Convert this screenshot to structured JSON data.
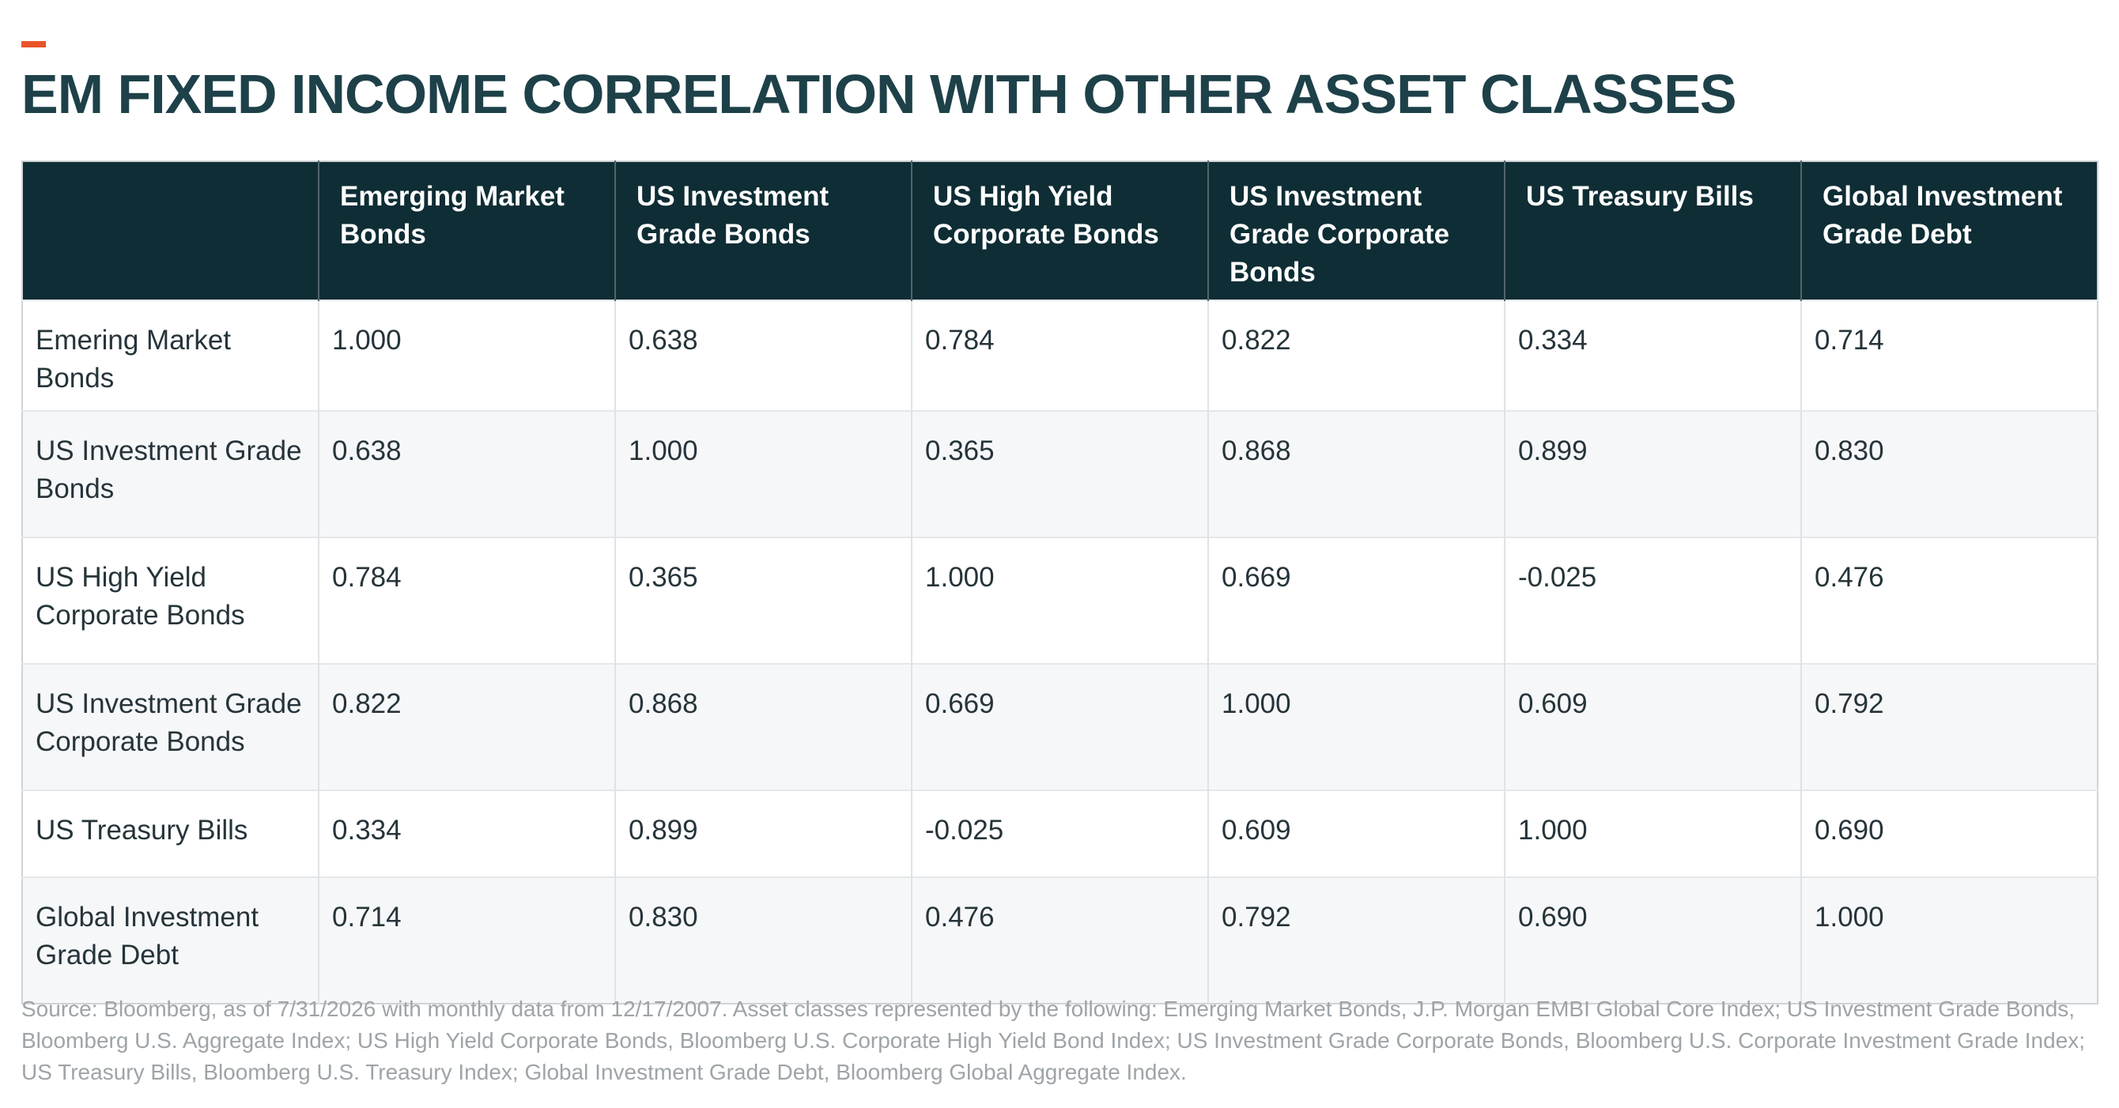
{
  "title": "EM FIXED INCOME CORRELATION WITH OTHER ASSET CLASSES",
  "colors": {
    "accent": "#e8542a",
    "title": "#1e4149",
    "header_bg": "#0f2d35",
    "row_alt_bg": "#f6f7f9",
    "source_text": "#9ea4a8"
  },
  "chart_data": {
    "type": "table",
    "title": "EM FIXED INCOME CORRELATION WITH OTHER ASSET CLASSES",
    "columns": [
      "",
      "Emerging Market Bonds",
      "US Investment Grade Bonds",
      "US High Yield Corporate Bonds",
      "US Investment Grade Corporate Bonds",
      "US Treasury Bills",
      "Global Investment Grade Debt"
    ],
    "rows": [
      [
        "Emering Market Bonds",
        "1.000",
        "0.638",
        "0.784",
        "0.822",
        "0.334",
        "0.714"
      ],
      [
        "US Investment Grade Bonds",
        "0.638",
        "1.000",
        "0.365",
        "0.868",
        "0.899",
        "0.830"
      ],
      [
        "US High Yield Corporate Bonds",
        "0.784",
        "0.365",
        "1.000",
        "0.669",
        "-0.025",
        "0.476"
      ],
      [
        "US Investment Grade Corporate Bonds",
        "0.822",
        "0.868",
        "0.669",
        "1.000",
        "0.609",
        "0.792"
      ],
      [
        "US Treasury Bills",
        "0.334",
        "0.899",
        "-0.025",
        "0.609",
        "1.000",
        "0.690"
      ],
      [
        "Global Investment Grade Debt",
        "0.714",
        "0.830",
        "0.476",
        "0.792",
        "0.690",
        "1.000"
      ]
    ]
  },
  "source": "Source: Bloomberg, as of 7/31/2026 with monthly data from 12/17/2007. Asset classes represented by the following: Emerging Market Bonds, J.P. Morgan EMBI Global Core Index; US Investment Grade Bonds, Bloomberg U.S. Aggregate Index; US High Yield Corporate Bonds, Bloomberg U.S. Corporate High Yield Bond Index; US Investment Grade Corporate Bonds, Bloomberg U.S. Corporate Investment Grade Index; US Treasury Bills, Bloomberg U.S. Treasury Index; Global Investment Grade Debt, Bloomberg Global Aggregate Index."
}
